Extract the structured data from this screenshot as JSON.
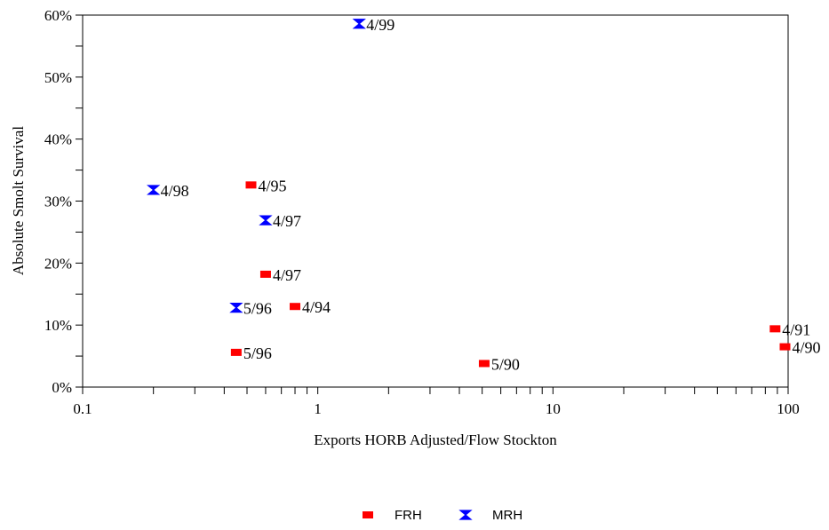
{
  "chart_data": {
    "type": "scatter",
    "title": "",
    "xlabel": "Exports HORB Adjusted/Flow Stockton",
    "ylabel": "Absolute Smolt Survival",
    "x_scale": "log",
    "xlim": [
      0.1,
      100
    ],
    "ylim": [
      0,
      60
    ],
    "x_ticks": [
      0.1,
      1,
      10,
      100
    ],
    "x_tick_labels": [
      "0.1",
      "1",
      "10",
      "100"
    ],
    "y_ticks": [
      0,
      10,
      20,
      30,
      40,
      50,
      60
    ],
    "y_tick_labels": [
      "0%",
      "10%",
      "20%",
      "30%",
      "40%",
      "50%",
      "60%"
    ],
    "grid": false,
    "legend_position": "bottom",
    "series": [
      {
        "name": "FRH",
        "marker": "square",
        "color": "#ff0000",
        "points": [
          {
            "x": 0.52,
            "y": 32.6,
            "label": "4/95"
          },
          {
            "x": 0.6,
            "y": 18.2,
            "label": "4/97"
          },
          {
            "x": 0.8,
            "y": 13.0,
            "label": "4/94"
          },
          {
            "x": 0.45,
            "y": 5.6,
            "label": "5/96"
          },
          {
            "x": 5.1,
            "y": 3.8,
            "label": "5/90"
          },
          {
            "x": 88,
            "y": 9.4,
            "label": "4/91"
          },
          {
            "x": 97,
            "y": 6.5,
            "label": "4/90"
          }
        ]
      },
      {
        "name": "MRH",
        "marker": "hourglass",
        "color": "#0000ff",
        "points": [
          {
            "x": 1.5,
            "y": 58.6,
            "label": "4/99"
          },
          {
            "x": 0.2,
            "y": 31.8,
            "label": "4/98"
          },
          {
            "x": 0.6,
            "y": 26.9,
            "label": "4/97"
          },
          {
            "x": 0.45,
            "y": 12.8,
            "label": "5/96"
          }
        ]
      }
    ]
  }
}
